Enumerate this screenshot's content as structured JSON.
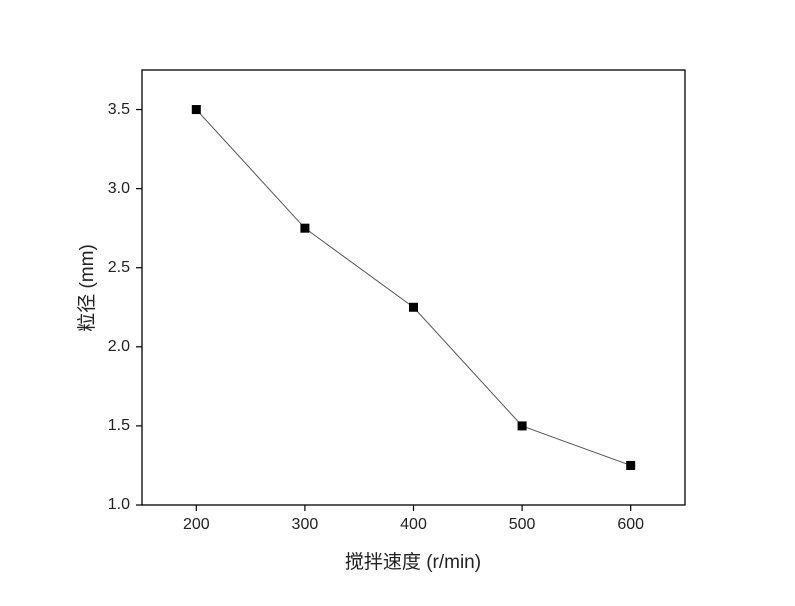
{
  "chart_data": {
    "type": "line",
    "x_label": "搅拌速度 (r/min)",
    "y_label": "粒径 (mm)",
    "x": [
      200,
      300,
      400,
      500,
      600
    ],
    "series": [
      {
        "color": "#000000",
        "values": [
          3.5,
          2.75,
          2.25,
          1.5,
          1.25
        ]
      }
    ],
    "xlim": [
      150,
      650
    ],
    "xticks": [
      200,
      300,
      400,
      500,
      600
    ],
    "ylim": [
      1.0,
      3.75
    ],
    "yticks": [
      {
        "value": 1.0,
        "label": "1.0"
      },
      1.5,
      {
        "value": 2.0,
        "label": "2.0"
      },
      2.5,
      {
        "value": 3.0,
        "label": "3.0"
      },
      3.5
    ],
    "grid": false
  }
}
